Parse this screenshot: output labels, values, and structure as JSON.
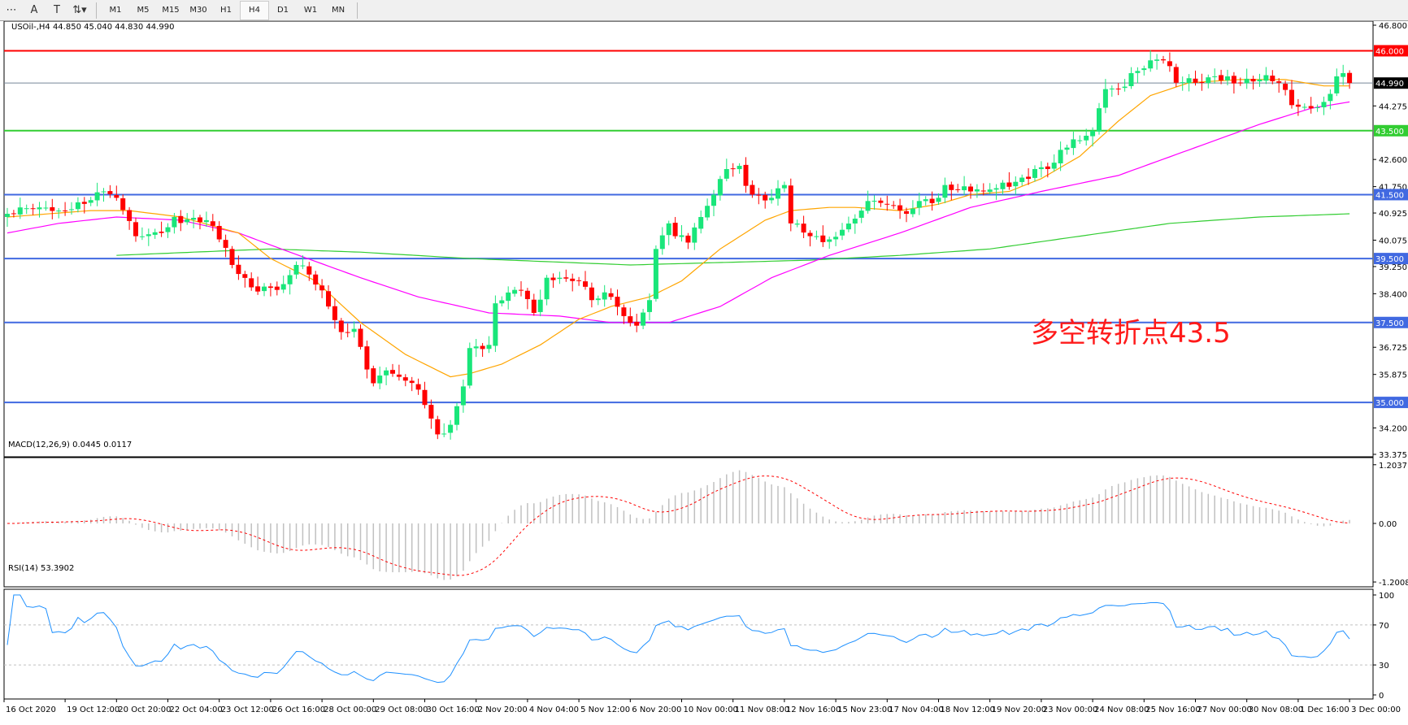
{
  "toolbar": {
    "tools": [
      {
        "icon": "grid-f-icon",
        "glyph": "⋯"
      },
      {
        "icon": "text-a-icon",
        "glyph": "A"
      },
      {
        "icon": "text-label-icon",
        "glyph": "T"
      },
      {
        "icon": "arrows-icon",
        "glyph": "⇅▾"
      }
    ],
    "timeframes": [
      "M1",
      "M5",
      "M15",
      "M30",
      "H1",
      "H4",
      "D1",
      "W1",
      "MN"
    ],
    "active_timeframe": "H4"
  },
  "main": {
    "header": "USOil-,H4  44.850 45.040 44.830 44.990",
    "annotation": "多空转折点43.5",
    "current_price": "44.990",
    "price_ticks": [
      "46.800",
      "44.275",
      "42.600",
      "41.750",
      "40.925",
      "40.075",
      "39.250",
      "38.400",
      "36.725",
      "35.875",
      "34.200",
      "33.375"
    ],
    "levels": [
      {
        "price": 46.0,
        "label": "46.000",
        "color": "#ff0000"
      },
      {
        "price": 43.5,
        "label": "43.500",
        "color": "#32cd32"
      },
      {
        "price": 41.5,
        "label": "41.500",
        "color": "#4169e1"
      },
      {
        "price": 39.5,
        "label": "39.500",
        "color": "#4169e1"
      },
      {
        "price": 37.5,
        "label": "37.500",
        "color": "#4169e1"
      },
      {
        "price": 35.0,
        "label": "35.000",
        "color": "#4169e1"
      }
    ]
  },
  "macd": {
    "header": "MACD(12,26,9) 0.0445 0.0117",
    "ticks": [
      "1.2037",
      "0.00",
      "-1.2008"
    ]
  },
  "rsi": {
    "header": "RSI(14) 53.3902",
    "ticks": [
      "100",
      "70",
      "30",
      "0"
    ]
  },
  "time_axis": [
    "16 Oct 2020",
    "19 Oct 12:00",
    "20 Oct 20:00",
    "22 Oct 04:00",
    "23 Oct 12:00",
    "26 Oct 16:00",
    "28 Oct 00:00",
    "29 Oct 08:00",
    "30 Oct 16:00",
    "2 Nov 20:00",
    "4 Nov 04:00",
    "5 Nov 12:00",
    "6 Nov 20:00",
    "10 Nov 00:00",
    "11 Nov 08:00",
    "12 Nov 16:00",
    "15 Nov 23:00",
    "17 Nov 04:00",
    "18 Nov 12:00",
    "19 Nov 20:00",
    "23 Nov 00:00",
    "24 Nov 08:00",
    "25 Nov 16:00",
    "27 Nov 00:00",
    "30 Nov 08:00",
    "1 Dec 16:00",
    "3 Dec 00:00"
  ],
  "colors": {
    "bull": "#19e67a",
    "bear": "#ff0000",
    "ma_fast": "#ffa500",
    "ma_mid": "#ff00ff",
    "ma_slow": "#32cd32",
    "macd_hist": "#c0c0c0",
    "macd_signal": "#ff0000",
    "rsi": "#1e90ff",
    "current_line": "#778899"
  },
  "chart_data": {
    "type": "candlestick",
    "bars": 210,
    "close_path": [
      [
        0,
        40.9
      ],
      [
        1,
        40.9
      ],
      [
        5,
        41.1
      ],
      [
        8,
        41.0
      ],
      [
        15,
        41.6
      ],
      [
        17,
        41.4
      ],
      [
        20,
        40.2
      ],
      [
        24,
        40.3
      ],
      [
        26,
        40.8
      ],
      [
        31,
        40.7
      ],
      [
        33,
        40.1
      ],
      [
        35,
        39.3
      ],
      [
        38,
        38.6
      ],
      [
        43,
        38.7
      ],
      [
        45,
        39.3
      ],
      [
        47,
        39.0
      ],
      [
        50,
        38.0
      ],
      [
        52,
        37.2
      ],
      [
        54,
        37.3
      ],
      [
        57,
        35.6
      ],
      [
        59,
        36.0
      ],
      [
        61,
        35.8
      ],
      [
        64,
        35.4
      ],
      [
        67,
        34.0
      ],
      [
        69,
        34.3
      ],
      [
        71,
        35.5
      ],
      [
        72,
        36.7
      ],
      [
        75,
        36.8
      ],
      [
        76,
        38.1
      ],
      [
        80,
        38.5
      ],
      [
        82,
        37.8
      ],
      [
        84,
        38.9
      ],
      [
        86,
        38.9
      ],
      [
        89,
        38.8
      ],
      [
        91,
        38.2
      ],
      [
        94,
        38.3
      ],
      [
        96,
        37.7
      ],
      [
        98,
        37.4
      ],
      [
        100,
        38.2
      ],
      [
        101,
        39.8
      ],
      [
        103,
        40.6
      ],
      [
        104,
        40.2
      ],
      [
        106,
        40.0
      ],
      [
        108,
        40.8
      ],
      [
        110,
        41.5
      ],
      [
        112,
        42.3
      ],
      [
        114,
        42.4
      ],
      [
        116,
        41.5
      ],
      [
        119,
        41.4
      ],
      [
        121,
        41.8
      ],
      [
        122,
        40.6
      ],
      [
        125,
        40.2
      ],
      [
        128,
        40.1
      ],
      [
        130,
        40.4
      ],
      [
        133,
        41.0
      ],
      [
        134,
        41.3
      ],
      [
        137,
        41.2
      ],
      [
        140,
        40.9
      ],
      [
        142,
        41.3
      ],
      [
        145,
        41.4
      ],
      [
        146,
        41.8
      ],
      [
        150,
        41.6
      ],
      [
        152,
        41.6
      ],
      [
        154,
        41.7
      ],
      [
        157,
        41.9
      ],
      [
        160,
        42.3
      ],
      [
        163,
        42.5
      ],
      [
        164,
        42.9
      ],
      [
        167,
        43.2
      ],
      [
        169,
        43.5
      ],
      [
        171,
        44.8
      ],
      [
        173,
        44.8
      ],
      [
        175,
        45.3
      ],
      [
        178,
        45.7
      ],
      [
        180,
        45.7
      ],
      [
        182,
        45.0
      ],
      [
        185,
        45.0
      ],
      [
        188,
        45.2
      ],
      [
        190,
        45.2
      ],
      [
        192,
        45.0
      ],
      [
        195,
        45.1
      ],
      [
        198,
        45.0
      ],
      [
        200,
        44.3
      ],
      [
        203,
        44.2
      ],
      [
        205,
        44.4
      ],
      [
        207,
        45.2
      ],
      [
        208,
        45.3
      ],
      [
        209,
        44.99
      ]
    ],
    "ma_fast": [
      [
        0,
        40.8
      ],
      [
        13,
        41.0
      ],
      [
        19,
        41.0
      ],
      [
        27,
        40.8
      ],
      [
        36,
        40.3
      ],
      [
        41,
        39.5
      ],
      [
        48,
        38.8
      ],
      [
        55,
        37.5
      ],
      [
        62,
        36.5
      ],
      [
        69,
        35.8
      ],
      [
        72,
        35.9
      ],
      [
        77,
        36.2
      ],
      [
        83,
        36.8
      ],
      [
        89,
        37.6
      ],
      [
        94,
        38.0
      ],
      [
        100,
        38.3
      ],
      [
        105,
        38.8
      ],
      [
        111,
        39.8
      ],
      [
        118,
        40.7
      ],
      [
        122,
        41.0
      ],
      [
        128,
        41.1
      ],
      [
        132,
        41.1
      ],
      [
        139,
        41.0
      ],
      [
        145,
        41.2
      ],
      [
        150,
        41.5
      ],
      [
        156,
        41.6
      ],
      [
        161,
        42.0
      ],
      [
        167,
        42.7
      ],
      [
        173,
        43.8
      ],
      [
        178,
        44.6
      ],
      [
        184,
        45.0
      ],
      [
        192,
        45.1
      ],
      [
        199,
        45.1
      ],
      [
        205,
        44.9
      ],
      [
        209,
        44.9
      ]
    ],
    "ma_mid": [
      [
        0,
        40.3
      ],
      [
        8,
        40.6
      ],
      [
        17,
        40.8
      ],
      [
        27,
        40.7
      ],
      [
        36,
        40.3
      ],
      [
        44,
        39.7
      ],
      [
        55,
        38.9
      ],
      [
        64,
        38.3
      ],
      [
        75,
        37.8
      ],
      [
        86,
        37.7
      ],
      [
        94,
        37.5
      ],
      [
        103,
        37.5
      ],
      [
        111,
        38.0
      ],
      [
        119,
        38.9
      ],
      [
        128,
        39.6
      ],
      [
        139,
        40.3
      ],
      [
        150,
        41.1
      ],
      [
        161,
        41.6
      ],
      [
        173,
        42.1
      ],
      [
        184,
        42.9
      ],
      [
        195,
        43.7
      ],
      [
        203,
        44.2
      ],
      [
        209,
        44.4
      ]
    ],
    "ma_slow": [
      [
        17,
        39.6
      ],
      [
        41,
        39.8
      ],
      [
        55,
        39.7
      ],
      [
        72,
        39.5
      ],
      [
        97,
        39.3
      ],
      [
        125,
        39.45
      ],
      [
        139,
        39.6
      ],
      [
        153,
        39.8
      ],
      [
        167,
        40.2
      ],
      [
        181,
        40.6
      ],
      [
        195,
        40.8
      ],
      [
        209,
        40.9
      ]
    ],
    "price_range": [
      33.375,
      46.8
    ],
    "macd_range": [
      -1.2008,
      1.2037
    ],
    "rsi_range": [
      0,
      100
    ]
  }
}
